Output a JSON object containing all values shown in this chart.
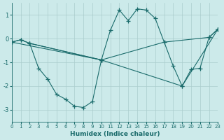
{
  "xlabel": "Humidex (Indice chaleur)",
  "bg_color": "#cceaea",
  "line_color": "#1a6b6b",
  "grid_color": "#aacccc",
  "series": [
    {
      "x": [
        0,
        1,
        2,
        10,
        11,
        12,
        13,
        14,
        15,
        16,
        17,
        22,
        23
      ],
      "y": [
        -0.15,
        -0.05,
        -0.2,
        -0.9,
        0.35,
        1.2,
        0.75,
        1.25,
        1.2,
        0.85,
        -0.15,
        0.05,
        0.4
      ]
    },
    {
      "x": [
        0,
        1,
        2,
        3,
        4,
        5,
        6,
        7,
        8,
        9,
        10
      ],
      "y": [
        -0.15,
        -0.05,
        -0.2,
        -1.25,
        -1.7,
        -2.35,
        -2.55,
        -2.85,
        -2.9,
        -2.65,
        -0.9
      ]
    },
    {
      "x": [
        2,
        10,
        17,
        18,
        19,
        20,
        21,
        22,
        23
      ],
      "y": [
        -0.2,
        -0.9,
        -0.15,
        -1.15,
        -2.0,
        -1.3,
        -1.25,
        0.05,
        0.4
      ]
    },
    {
      "x": [
        0,
        10,
        19,
        23
      ],
      "y": [
        -0.15,
        -0.9,
        -2.0,
        0.4
      ]
    }
  ],
  "xlim": [
    0,
    23
  ],
  "ylim": [
    -3.5,
    1.5
  ],
  "yticks": [
    -3,
    -2,
    -1,
    0,
    1
  ],
  "xticks": [
    0,
    1,
    2,
    3,
    4,
    5,
    6,
    7,
    8,
    9,
    10,
    11,
    12,
    13,
    14,
    15,
    16,
    17,
    18,
    19,
    20,
    21,
    22,
    23
  ]
}
